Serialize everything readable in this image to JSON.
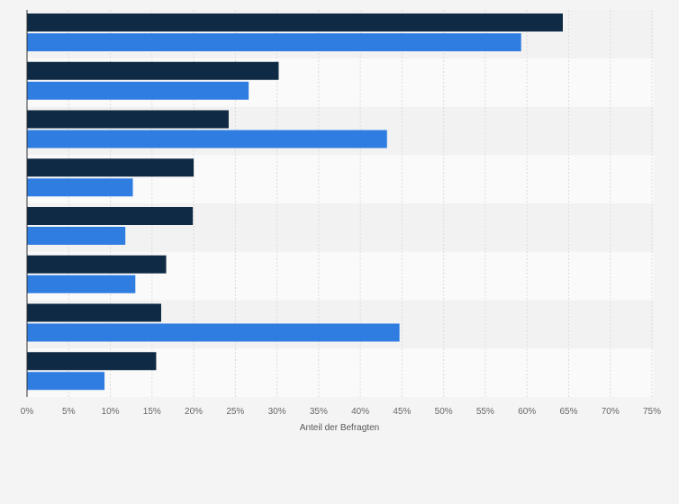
{
  "chart_data": {
    "type": "bar",
    "orientation": "horizontal",
    "categories": [
      "",
      "",
      "",
      "",
      "",
      "",
      "",
      ""
    ],
    "series": [
      {
        "color": "#0f2a44",
        "values": [
          64.3,
          30.2,
          24.2,
          20.0,
          19.9,
          16.7,
          16.1,
          15.5
        ]
      },
      {
        "color": "#2f7de1",
        "values": [
          59.3,
          26.6,
          43.2,
          12.7,
          11.8,
          13.0,
          44.7,
          9.3
        ]
      }
    ],
    "xlabel": "Anteil der Befragten",
    "xlim": [
      0,
      75
    ],
    "xticks": [
      "0%",
      "5%",
      "10%",
      "15%",
      "20%",
      "25%",
      "30%",
      "35%",
      "40%",
      "45%",
      "50%",
      "55%",
      "60%",
      "65%",
      "70%",
      "75%"
    ],
    "grid": true,
    "legend": "none"
  }
}
